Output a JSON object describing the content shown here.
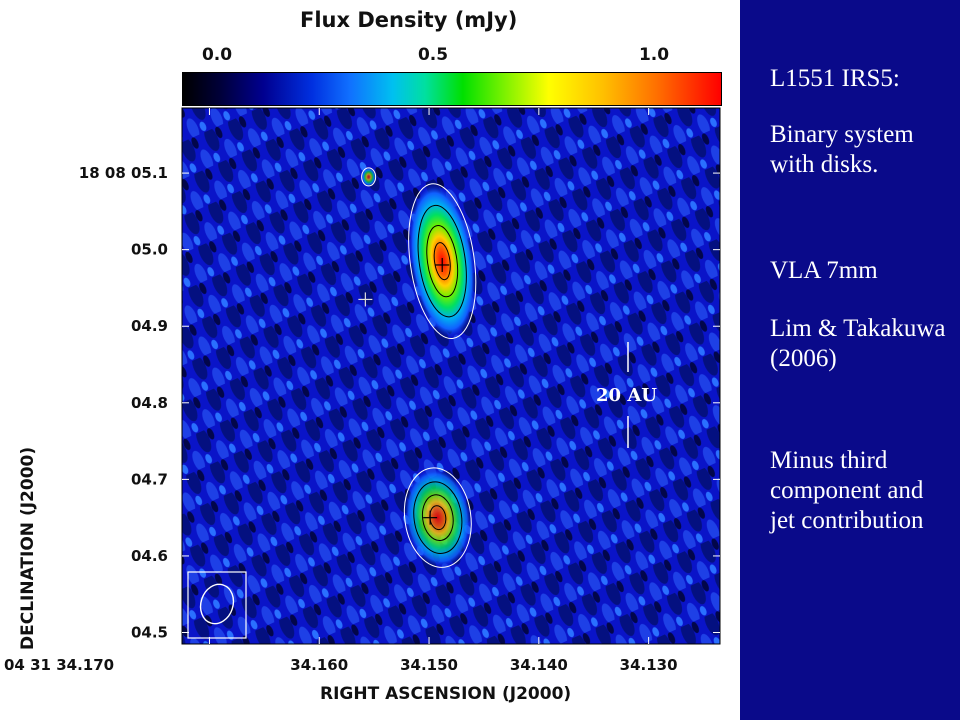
{
  "chart_data": {
    "type": "heatmap",
    "title": "Flux Density (mJy)",
    "colorbar": {
      "ticks": [
        "0.0",
        "0.5",
        "1.0"
      ],
      "range": [
        0.0,
        1.2
      ],
      "colormap": [
        "#000000",
        "#000090",
        "#1070ff",
        "#00c0f0",
        "#00e000",
        "#ffff00",
        "#ff7000",
        "#ff0000"
      ]
    },
    "xlabel": "RIGHT ASCENSION (J2000)",
    "ylabel": "DECLINATION (J2000)",
    "x_ticks": [
      "04 31 34.170",
      "34.160",
      "34.150",
      "34.140",
      "34.130"
    ],
    "y_ticks": [
      "18 08 05.1",
      "05.0",
      "04.9",
      "04.8",
      "04.7",
      "04.6",
      "04.5"
    ],
    "xlim": [
      34.1725,
      34.1235
    ],
    "ylim": [
      4.485,
      5.185
    ],
    "annotation": "20 AU",
    "components": [
      {
        "ra": 34.1488,
        "dec": 4.985,
        "peak_mJy": 1.1
      },
      {
        "ra": 34.1492,
        "dec": 4.65,
        "peak_mJy": 0.7
      },
      {
        "ra": 34.1555,
        "dec": 5.095,
        "peak_mJy": 0.35
      }
    ],
    "crosses": [
      {
        "ra": 34.1488,
        "dec": 4.98
      },
      {
        "ra": 34.1558,
        "dec": 4.935
      },
      {
        "ra": 34.1499,
        "dec": 4.65
      }
    ]
  },
  "side_panel": {
    "lines": [
      "L1551 IRS5:",
      "Binary system with disks.",
      "VLA 7mm",
      "Lim & Takakuwa (2006)",
      "Minus third component and jet contribution"
    ]
  }
}
